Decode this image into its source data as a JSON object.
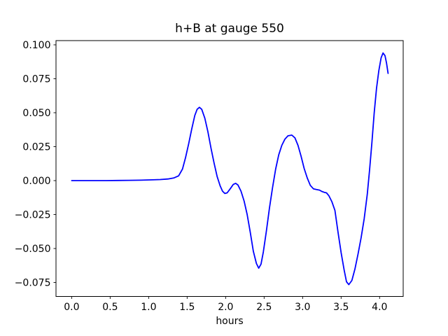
{
  "chart_data": {
    "type": "line",
    "title": "h+B at gauge 550",
    "xlabel": "hours",
    "ylabel": "",
    "grid": false,
    "legend": null,
    "xlim": [
      -0.2035,
      4.3065
    ],
    "ylim": [
      -0.0853,
      0.1031
    ],
    "x_ticks": {
      "values": [
        0.0,
        0.5,
        1.0,
        1.5,
        2.0,
        2.5,
        3.0,
        3.5,
        4.0
      ],
      "labels": [
        "0.0",
        "0.5",
        "1.0",
        "1.5",
        "2.0",
        "2.5",
        "3.0",
        "3.5",
        "4.0"
      ]
    },
    "y_ticks": {
      "values": [
        -0.075,
        -0.05,
        -0.025,
        0.0,
        0.025,
        0.05,
        0.075,
        0.1
      ],
      "labels": [
        "−0.075",
        "−0.050",
        "−0.025",
        "0.000",
        "0.025",
        "0.050",
        "0.075",
        "0.100"
      ]
    },
    "series": [
      {
        "name": "h+B",
        "color": "#0000ff",
        "x": [
          0.0,
          0.15,
          0.3,
          0.45,
          0.6,
          0.75,
          0.9,
          1.05,
          1.15,
          1.25,
          1.33,
          1.39,
          1.44,
          1.48,
          1.52,
          1.56,
          1.6,
          1.63,
          1.66,
          1.69,
          1.73,
          1.77,
          1.81,
          1.85,
          1.89,
          1.93,
          1.96,
          1.99,
          2.02,
          2.06,
          2.1,
          2.13,
          2.16,
          2.2,
          2.24,
          2.28,
          2.32,
          2.36,
          2.4,
          2.43,
          2.46,
          2.49,
          2.53,
          2.57,
          2.61,
          2.65,
          2.69,
          2.73,
          2.77,
          2.81,
          2.86,
          2.9,
          2.94,
          2.98,
          3.02,
          3.06,
          3.1,
          3.14,
          3.18,
          3.22,
          3.25,
          3.28,
          3.31,
          3.34,
          3.38,
          3.42,
          3.46,
          3.5,
          3.54,
          3.57,
          3.6,
          3.64,
          3.68,
          3.72,
          3.76,
          3.8,
          3.84,
          3.87,
          3.9,
          3.93,
          3.96,
          3.99,
          4.02,
          4.045,
          4.07,
          4.09,
          4.11
        ],
        "y": [
          0.0,
          0.0,
          0.0,
          0.0,
          0.0001,
          0.0002,
          0.0003,
          0.0006,
          0.0008,
          0.0012,
          0.002,
          0.0035,
          0.0085,
          0.017,
          0.027,
          0.038,
          0.048,
          0.0525,
          0.054,
          0.0525,
          0.046,
          0.036,
          0.024,
          0.013,
          0.003,
          -0.004,
          -0.0078,
          -0.0095,
          -0.009,
          -0.006,
          -0.0028,
          -0.002,
          -0.0032,
          -0.0078,
          -0.015,
          -0.025,
          -0.038,
          -0.052,
          -0.061,
          -0.0645,
          -0.0615,
          -0.0525,
          -0.037,
          -0.02,
          -0.005,
          0.0085,
          0.019,
          0.026,
          0.0305,
          0.033,
          0.0335,
          0.0315,
          0.026,
          0.018,
          0.009,
          0.002,
          -0.0035,
          -0.006,
          -0.0066,
          -0.007,
          -0.008,
          -0.0086,
          -0.009,
          -0.011,
          -0.0155,
          -0.022,
          -0.038,
          -0.053,
          -0.066,
          -0.0745,
          -0.0766,
          -0.0735,
          -0.065,
          -0.054,
          -0.042,
          -0.028,
          -0.01,
          0.008,
          0.028,
          0.05,
          0.068,
          0.081,
          0.0905,
          0.094,
          0.092,
          0.0865,
          0.079
        ]
      }
    ],
    "colors": {
      "line": "#0000ff",
      "spine": "#000000",
      "background": "#ffffff"
    }
  }
}
